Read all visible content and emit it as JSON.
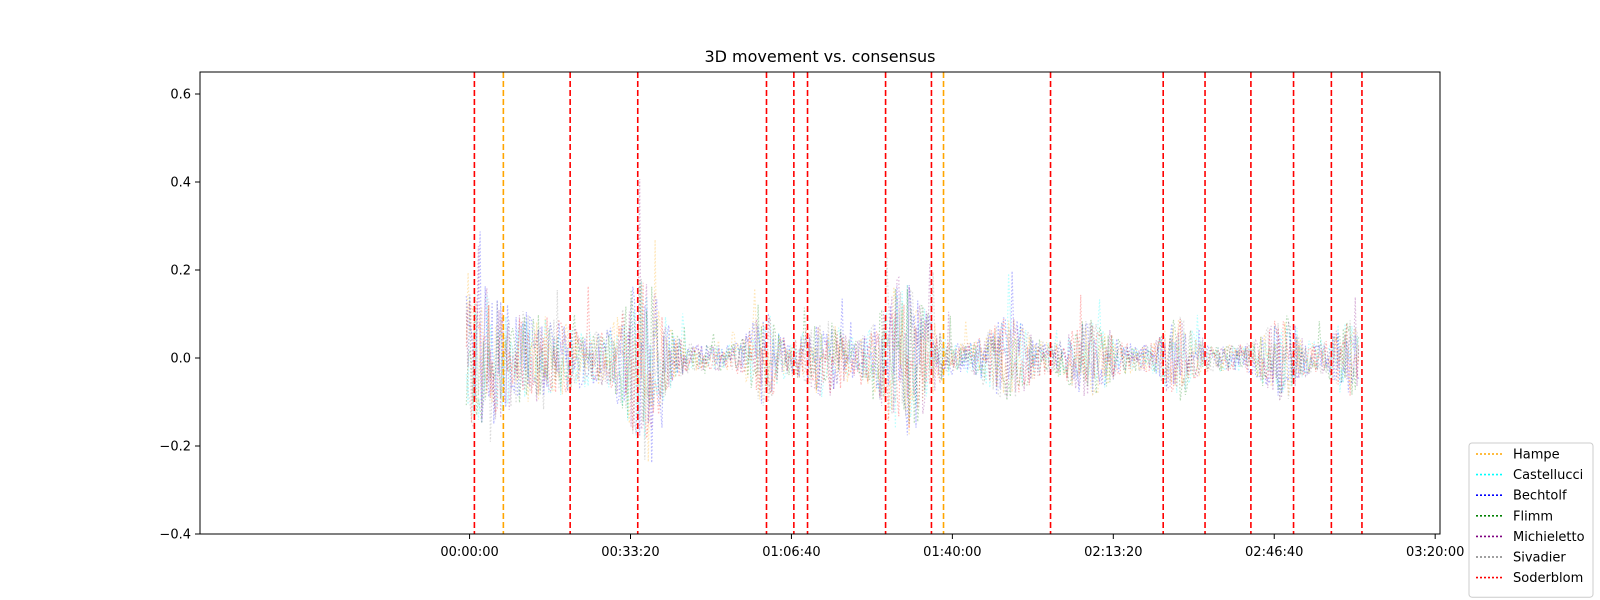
{
  "chart_data": {
    "type": "line",
    "title": "3D movement vs. consensus",
    "xlabel": "",
    "ylabel": "",
    "xlim_seconds": [
      -3350,
      12060
    ],
    "ylim": [
      -0.4,
      0.65
    ],
    "x_ticks": [
      {
        "value": 0,
        "label": "00:00:00"
      },
      {
        "value": 2000,
        "label": "00:33:20"
      },
      {
        "value": 4000,
        "label": "01:06:40"
      },
      {
        "value": 6000,
        "label": "01:40:00"
      },
      {
        "value": 8000,
        "label": "02:13:20"
      },
      {
        "value": 10000,
        "label": "02:46:40"
      },
      {
        "value": 12000,
        "label": "03:20:00"
      }
    ],
    "y_ticks": [
      {
        "value": -0.4,
        "label": "−0.4"
      },
      {
        "value": -0.2,
        "label": "−0.2"
      },
      {
        "value": 0.0,
        "label": "0.0"
      },
      {
        "value": 0.2,
        "label": "0.2"
      },
      {
        "value": 0.4,
        "label": "0.4"
      },
      {
        "value": 0.6,
        "label": "0.6"
      }
    ],
    "legend_position": "outside-bottom-right",
    "series": [
      {
        "name": "Hampe",
        "color": "#ffa500",
        "style": "dotted"
      },
      {
        "name": "Castellucci",
        "color": "#00ffff",
        "style": "dotted"
      },
      {
        "name": "Bechtolf",
        "color": "#0000ff",
        "style": "dotted"
      },
      {
        "name": "Flimm",
        "color": "#008000",
        "style": "dotted"
      },
      {
        "name": "Michieletto",
        "color": "#800080",
        "style": "dotted"
      },
      {
        "name": "Sivadier",
        "color": "#808080",
        "style": "dotted"
      },
      {
        "name": "Soderblom",
        "color": "#ff0000",
        "style": "dotted"
      }
    ],
    "vertical_lines": [
      {
        "x": 60,
        "color": "#ff0000",
        "style": "dashed"
      },
      {
        "x": 420,
        "color": "#ffa500",
        "style": "dashed"
      },
      {
        "x": 1250,
        "color": "#ff0000",
        "style": "dashed"
      },
      {
        "x": 2090,
        "color": "#ff0000",
        "style": "dashed"
      },
      {
        "x": 3690,
        "color": "#ff0000",
        "style": "dashed"
      },
      {
        "x": 4030,
        "color": "#ff0000",
        "style": "dashed"
      },
      {
        "x": 4200,
        "color": "#ff0000",
        "style": "dashed"
      },
      {
        "x": 5170,
        "color": "#ff0000",
        "style": "dashed"
      },
      {
        "x": 5740,
        "color": "#ff0000",
        "style": "dashed"
      },
      {
        "x": 5890,
        "color": "#ffa500",
        "style": "dashed"
      },
      {
        "x": 7220,
        "color": "#ff0000",
        "style": "dashed"
      },
      {
        "x": 8620,
        "color": "#ff0000",
        "style": "dashed"
      },
      {
        "x": 9140,
        "color": "#ff0000",
        "style": "dashed"
      },
      {
        "x": 9710,
        "color": "#ff0000",
        "style": "dashed"
      },
      {
        "x": 10240,
        "color": "#ff0000",
        "style": "dashed"
      },
      {
        "x": 10710,
        "color": "#ff0000",
        "style": "dashed"
      },
      {
        "x": 11090,
        "color": "#ff0000",
        "style": "dashed"
      }
    ],
    "data_x_range": [
      -40,
      11050
    ],
    "grid": false
  }
}
